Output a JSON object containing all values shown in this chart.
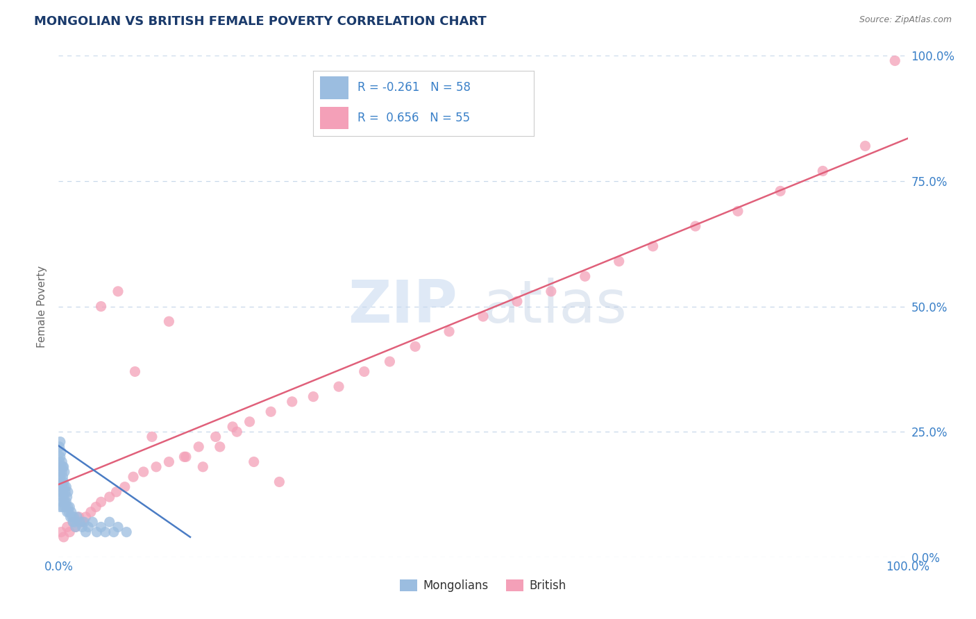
{
  "title": "MONGOLIAN VS BRITISH FEMALE POVERTY CORRELATION CHART",
  "source": "Source: ZipAtlas.com",
  "ylabel": "Female Poverty",
  "title_color": "#1a3a6b",
  "source_color": "#777777",
  "background_color": "#ffffff",
  "plot_bg_color": "#ffffff",
  "watermark_zip": "ZIP",
  "watermark_atlas": "atlas",
  "legend_r1": "R = -0.261",
  "legend_n1": "N = 58",
  "legend_r2": "R =  0.656",
  "legend_n2": "N = 55",
  "mongolian_color": "#9bbde0",
  "british_color": "#f4a0b8",
  "mongolian_line_color": "#4a7cc4",
  "british_line_color": "#e0607a",
  "grid_color": "#c8d8ea",
  "tick_label_color": "#3a80c8",
  "xmin": 0.0,
  "xmax": 1.0,
  "ymin": 0.0,
  "ymax": 1.0,
  "xtick_positions": [
    0.0,
    1.0
  ],
  "xtick_labels": [
    "0.0%",
    "100.0%"
  ],
  "ytick_vals": [
    0.0,
    0.25,
    0.5,
    0.75,
    1.0
  ],
  "ytick_labels": [
    "0.0%",
    "25.0%",
    "50.0%",
    "75.0%",
    "100.0%"
  ],
  "brit_line_x": [
    0.0,
    1.0
  ],
  "brit_line_y": [
    0.145,
    0.835
  ],
  "mon_line_x": [
    0.0,
    0.155
  ],
  "mon_line_y": [
    0.222,
    0.04
  ],
  "legend_labels": [
    "Mongolians",
    "British"
  ],
  "mongolian_scatter_x": [
    0.001,
    0.001,
    0.001,
    0.001,
    0.002,
    0.002,
    0.002,
    0.002,
    0.002,
    0.003,
    0.003,
    0.003,
    0.003,
    0.004,
    0.004,
    0.004,
    0.004,
    0.005,
    0.005,
    0.005,
    0.005,
    0.006,
    0.006,
    0.006,
    0.007,
    0.007,
    0.007,
    0.008,
    0.008,
    0.009,
    0.009,
    0.01,
    0.01,
    0.011,
    0.011,
    0.012,
    0.013,
    0.014,
    0.015,
    0.016,
    0.017,
    0.018,
    0.019,
    0.02,
    0.022,
    0.025,
    0.028,
    0.03,
    0.032,
    0.035,
    0.04,
    0.045,
    0.05,
    0.055,
    0.06,
    0.065,
    0.07,
    0.08
  ],
  "mongolian_scatter_y": [
    0.14,
    0.17,
    0.19,
    0.22,
    0.1,
    0.13,
    0.16,
    0.2,
    0.23,
    0.12,
    0.15,
    0.18,
    0.21,
    0.11,
    0.14,
    0.17,
    0.19,
    0.1,
    0.13,
    0.16,
    0.18,
    0.12,
    0.15,
    0.18,
    0.11,
    0.14,
    0.17,
    0.1,
    0.13,
    0.11,
    0.14,
    0.09,
    0.12,
    0.1,
    0.13,
    0.09,
    0.1,
    0.08,
    0.09,
    0.08,
    0.07,
    0.08,
    0.07,
    0.06,
    0.08,
    0.07,
    0.06,
    0.07,
    0.05,
    0.06,
    0.07,
    0.05,
    0.06,
    0.05,
    0.07,
    0.05,
    0.06,
    0.05
  ],
  "british_scatter_x": [
    0.003,
    0.006,
    0.01,
    0.013,
    0.017,
    0.02,
    0.024,
    0.028,
    0.032,
    0.038,
    0.044,
    0.05,
    0.06,
    0.068,
    0.078,
    0.088,
    0.1,
    0.115,
    0.13,
    0.148,
    0.165,
    0.185,
    0.205,
    0.225,
    0.25,
    0.275,
    0.3,
    0.33,
    0.36,
    0.39,
    0.42,
    0.46,
    0.5,
    0.54,
    0.58,
    0.62,
    0.66,
    0.7,
    0.75,
    0.8,
    0.85,
    0.9,
    0.95,
    0.985,
    0.05,
    0.07,
    0.09,
    0.11,
    0.13,
    0.15,
    0.17,
    0.19,
    0.21,
    0.23,
    0.26
  ],
  "british_scatter_y": [
    0.05,
    0.04,
    0.06,
    0.05,
    0.07,
    0.06,
    0.08,
    0.07,
    0.08,
    0.09,
    0.1,
    0.11,
    0.12,
    0.13,
    0.14,
    0.16,
    0.17,
    0.18,
    0.19,
    0.2,
    0.22,
    0.24,
    0.26,
    0.27,
    0.29,
    0.31,
    0.32,
    0.34,
    0.37,
    0.39,
    0.42,
    0.45,
    0.48,
    0.51,
    0.53,
    0.56,
    0.59,
    0.62,
    0.66,
    0.69,
    0.73,
    0.77,
    0.82,
    0.99,
    0.5,
    0.53,
    0.37,
    0.24,
    0.47,
    0.2,
    0.18,
    0.22,
    0.25,
    0.19,
    0.15
  ]
}
